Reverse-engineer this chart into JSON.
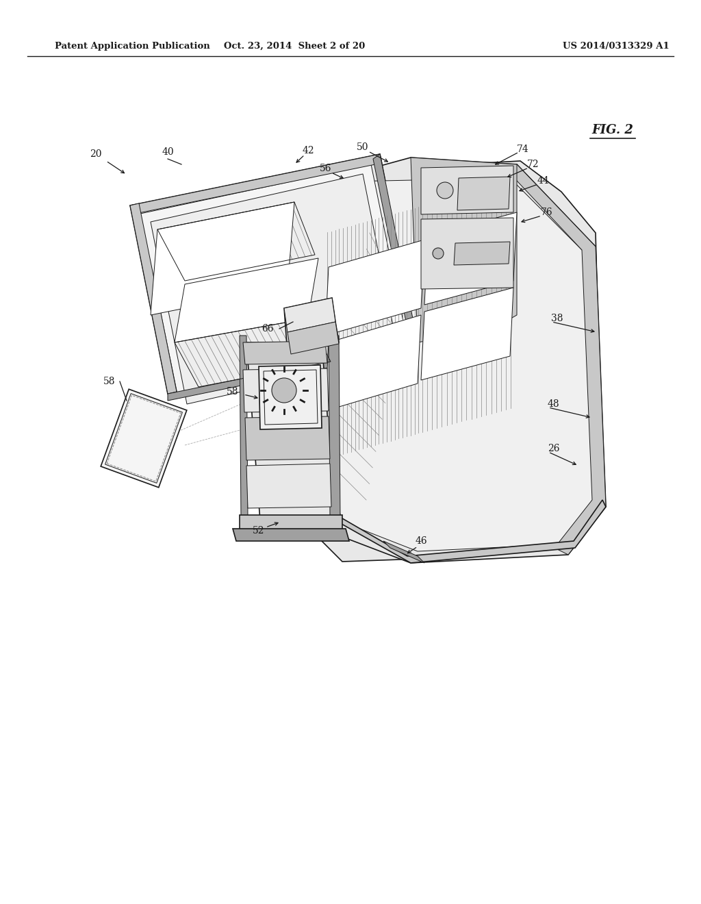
{
  "background_color": "#ffffff",
  "header_left": "Patent Application Publication",
  "header_center": "Oct. 23, 2014  Sheet 2 of 20",
  "header_right": "US 2014/0313329 A1",
  "fig_label": "FIG. 2",
  "line_color": "#1a1a1a",
  "light_gray": "#e8e8e8",
  "mid_gray": "#c8c8c8",
  "dark_gray": "#a0a0a0",
  "hatch_gray": "#888888"
}
